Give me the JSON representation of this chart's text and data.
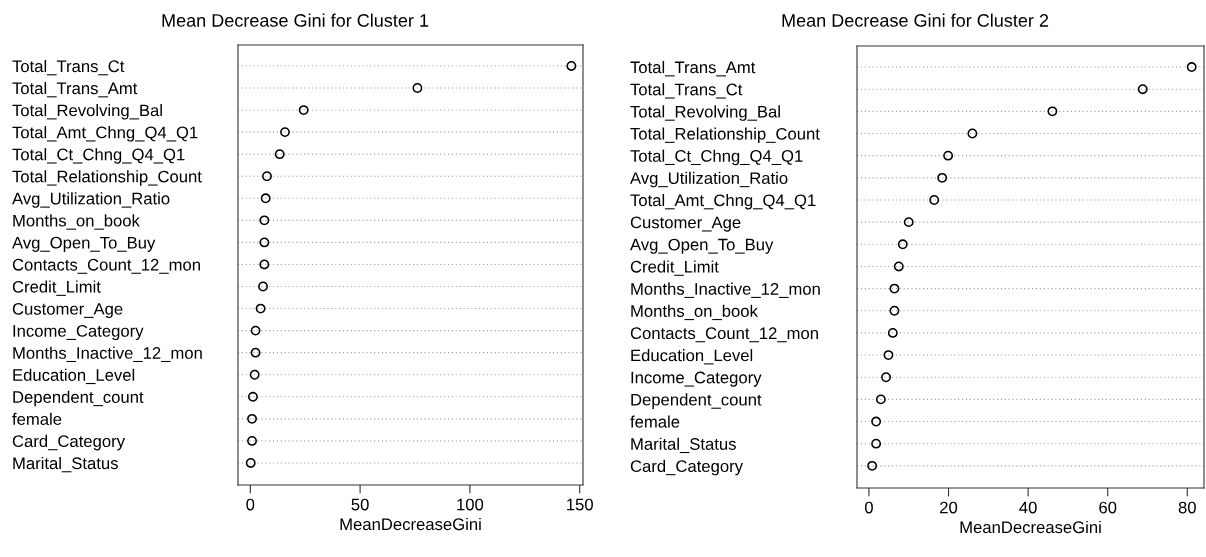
{
  "chart_data": [
    {
      "type": "scatter",
      "title": "Mean Decrease Gini for Cluster 1",
      "xlabel": "MeanDecreaseGini",
      "categories": [
        "Total_Trans_Ct",
        "Total_Trans_Amt",
        "Total_Revolving_Bal",
        "Total_Amt_Chng_Q4_Q1",
        "Total_Ct_Chng_Q4_Q1",
        "Total_Relationship_Count",
        "Avg_Utilization_Ratio",
        "Months_on_book",
        "Avg_Open_To_Buy",
        "Contacts_Count_12_mon",
        "Credit_Limit",
        "Customer_Age",
        "Income_Category",
        "Months_Inactive_12_mon",
        "Education_Level",
        "Dependent_count",
        "female",
        "Card_Category",
        "Marital_Status"
      ],
      "values": [
        146.2,
        76.1,
        24.3,
        15.8,
        13.4,
        7.6,
        7.0,
        6.4,
        6.4,
        6.4,
        5.8,
        4.7,
        2.4,
        2.4,
        2.0,
        1.2,
        0.8,
        0.8,
        0.2
      ],
      "color": "#000000",
      "marker": "circle",
      "orientation": "horizontal",
      "grid": "y",
      "xlim": [
        -5.6,
        151.5
      ],
      "xticks": [
        0,
        50,
        100,
        150
      ]
    },
    {
      "type": "scatter",
      "title": "Mean Decrease Gini for Cluster 2",
      "xlabel": "MeanDecreaseGini",
      "categories": [
        "Total_Trans_Amt",
        "Total_Trans_Ct",
        "Total_Revolving_Bal",
        "Total_Relationship_Count",
        "Total_Ct_Chng_Q4_Q1",
        "Avg_Utilization_Ratio",
        "Total_Amt_Chng_Q4_Q1",
        "Customer_Age",
        "Avg_Open_To_Buy",
        "Credit_Limit",
        "Months_Inactive_12_mon",
        "Months_on_book",
        "Contacts_Count_12_mon",
        "Education_Level",
        "Income_Category",
        "Dependent_count",
        "female",
        "Marital_Status",
        "Card_Category"
      ],
      "values": [
        81.1,
        68.8,
        46.1,
        26.0,
        19.9,
        18.4,
        16.4,
        10.0,
        8.5,
        7.5,
        6.4,
        6.4,
        6.0,
        4.9,
        4.3,
        3.0,
        1.8,
        1.8,
        0.8
      ],
      "color": "#000000",
      "marker": "circle",
      "orientation": "horizontal",
      "grid": "y",
      "xlim": [
        -3.0,
        84.2
      ],
      "xticks": [
        0,
        20,
        40,
        60,
        80
      ]
    }
  ]
}
